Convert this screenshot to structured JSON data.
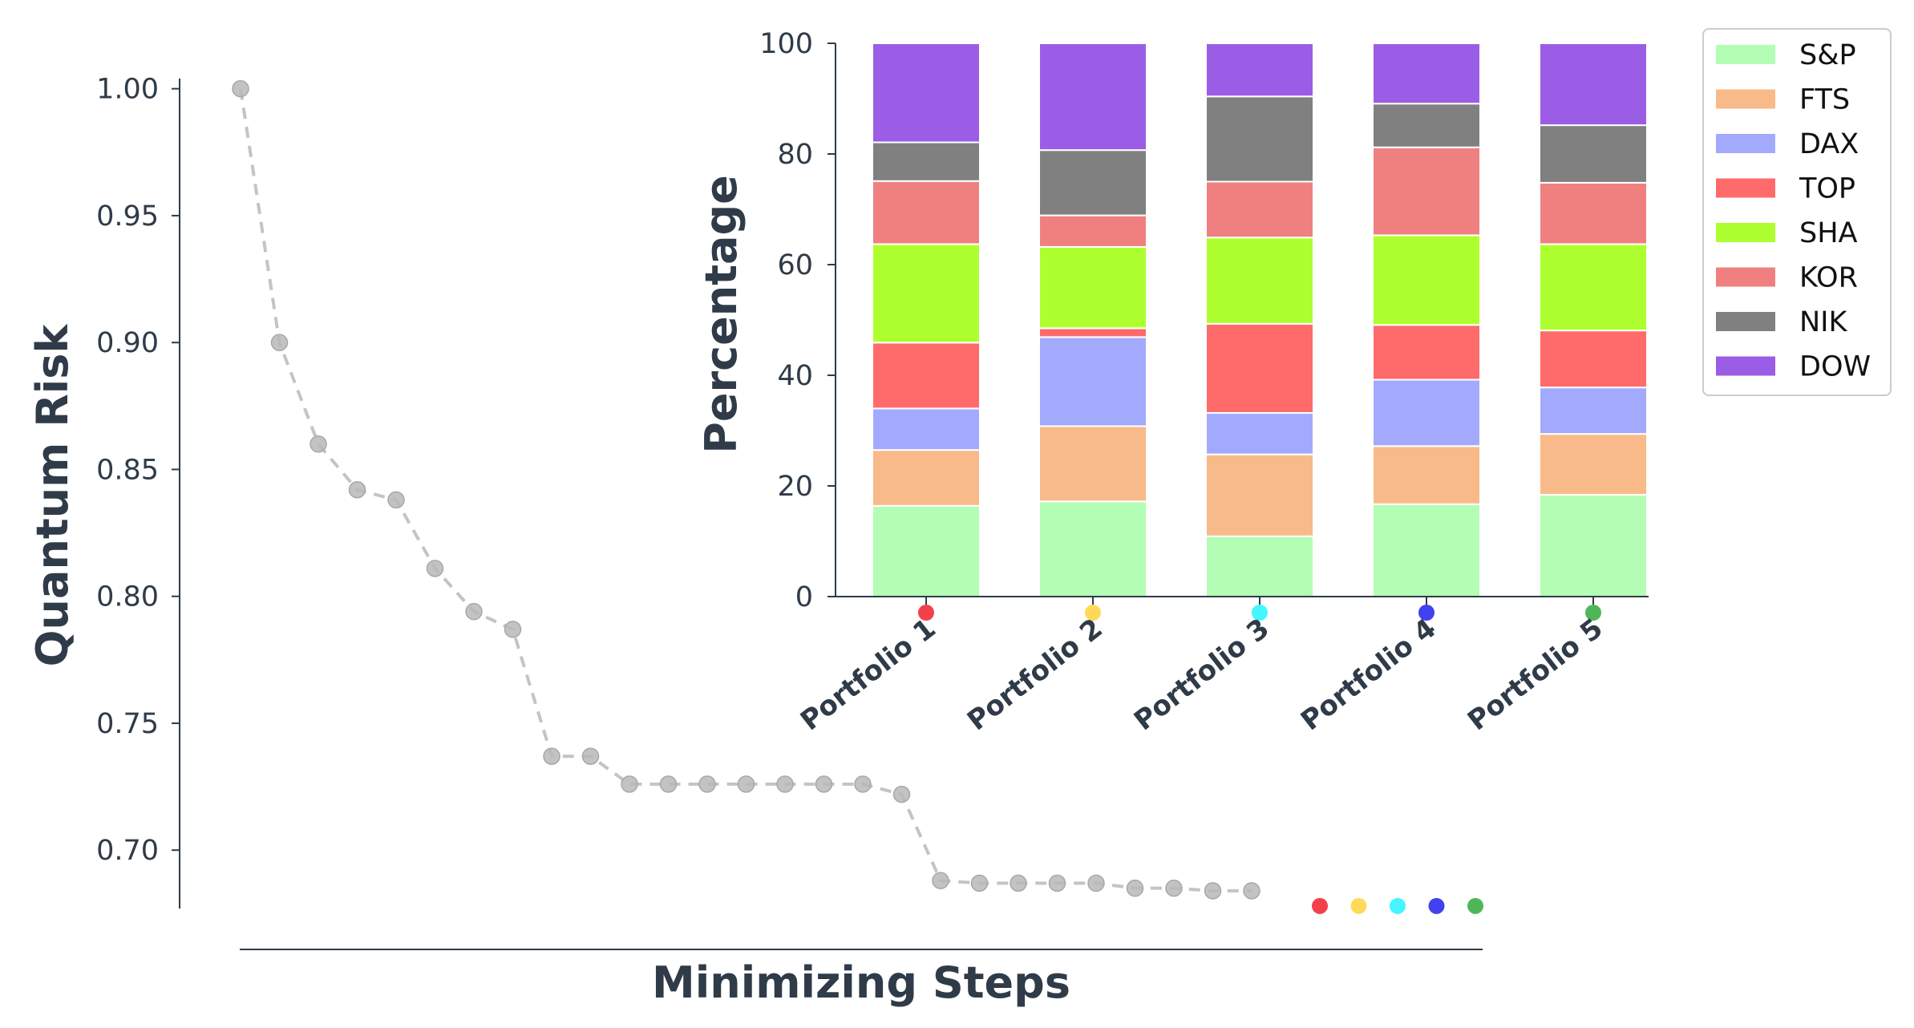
{
  "chart_data": [
    {
      "id": "risk",
      "type": "line",
      "xlabel": "Minimizing Steps",
      "ylabel": "Quantum Risk",
      "ylim": [
        0.677,
        1.004
      ],
      "yticks": [
        "1.00",
        "0.95",
        "0.90",
        "0.85",
        "0.80",
        "0.75",
        "0.70"
      ],
      "ytick_values": [
        1.0,
        0.95,
        0.9,
        0.85,
        0.8,
        0.75,
        0.7
      ],
      "style": {
        "line_color": "#c4c4c4",
        "line": "dashed",
        "marker": "circle"
      },
      "x": [
        0,
        1,
        2,
        3,
        4,
        5,
        6,
        7,
        8,
        9,
        10,
        11,
        12,
        13,
        14,
        15,
        16,
        17,
        18,
        19,
        20,
        21,
        22,
        23,
        24,
        25,
        26
      ],
      "values": [
        1.0,
        0.9,
        0.86,
        0.842,
        0.838,
        0.811,
        0.794,
        0.787,
        0.737,
        0.737,
        0.726,
        0.726,
        0.726,
        0.726,
        0.726,
        0.726,
        0.726,
        0.722,
        0.688,
        0.687,
        0.687,
        0.687,
        0.687,
        0.685,
        0.685,
        0.684,
        0.684
      ],
      "portfolio_markers": {
        "x": [
          28,
          29,
          30,
          31,
          32
        ],
        "value": 0.678,
        "colors": [
          "#f0202a",
          "#ffd43b",
          "#22f4ff",
          "#2020f0",
          "#2fac3b"
        ]
      }
    },
    {
      "id": "allocation",
      "type": "bar",
      "stacked": true,
      "ylabel": "Percentage",
      "ylim": [
        0,
        100
      ],
      "yticks": [
        0,
        20,
        40,
        60,
        80,
        100
      ],
      "categories": [
        "Portfolio 1",
        "Portfolio 2",
        "Portfolio 3",
        "Portfolio 4",
        "Portfolio 5"
      ],
      "category_marker_colors": [
        "#f0202a",
        "#ffd43b",
        "#22f4ff",
        "#2020f0",
        "#2fac3b"
      ],
      "legend_position": "outside top-right",
      "series": [
        {
          "name": "S&P",
          "color": "#b4fdb4",
          "values": [
            16.4,
            17.2,
            10.9,
            16.7,
            18.4
          ]
        },
        {
          "name": "FTS",
          "color": "#f8ba88",
          "values": [
            10.1,
            13.6,
            14.8,
            10.5,
            11.0
          ]
        },
        {
          "name": "DAX",
          "color": "#a3aafd",
          "values": [
            7.5,
            16.1,
            7.5,
            12.0,
            8.4
          ]
        },
        {
          "name": "TOP",
          "color": "#ff6b6b",
          "values": [
            11.9,
            1.6,
            16.1,
            9.9,
            10.3
          ]
        },
        {
          "name": "SHA",
          "color": "#adff2f",
          "values": [
            17.8,
            14.7,
            15.6,
            16.2,
            15.6
          ]
        },
        {
          "name": "KOR",
          "color": "#f08080",
          "values": [
            11.4,
            5.7,
            10.1,
            15.9,
            11.1
          ]
        },
        {
          "name": "NIK",
          "color": "#808080",
          "values": [
            7.0,
            11.8,
            15.4,
            7.9,
            10.4
          ]
        },
        {
          "name": "DOW",
          "color": "#9b5de5",
          "values": [
            17.9,
            19.3,
            9.6,
            10.9,
            14.8
          ]
        }
      ]
    }
  ]
}
